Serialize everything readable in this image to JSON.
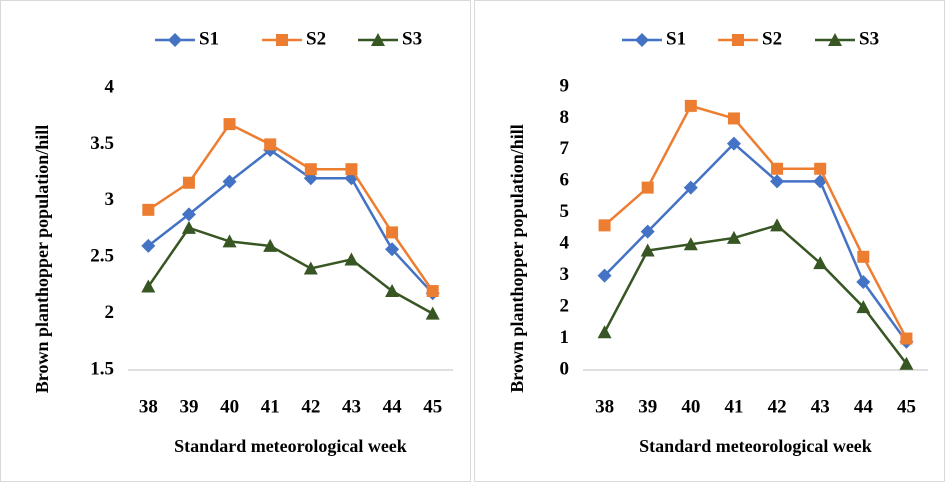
{
  "chart_data": [
    {
      "type": "line",
      "categories": [
        "38",
        "39",
        "40",
        "41",
        "42",
        "43",
        "44",
        "45"
      ],
      "x_label": "Standard meteorological week",
      "y_label": "Brown planthopper population/hill",
      "ylim": [
        1.5,
        4
      ],
      "yticks": [
        1.5,
        2,
        2.5,
        3,
        3.5,
        4
      ],
      "series": [
        {
          "name": "S1",
          "color": "#4472c4",
          "marker": "diamond",
          "values": [
            2.6,
            2.88,
            3.17,
            3.45,
            3.2,
            3.2,
            2.57,
            2.18
          ]
        },
        {
          "name": "S2",
          "color": "#ed7d31",
          "marker": "square",
          "values": [
            2.92,
            3.16,
            3.68,
            3.5,
            3.28,
            3.28,
            2.72,
            2.2
          ]
        },
        {
          "name": "S3",
          "color": "#375623",
          "marker": "triangle",
          "values": [
            2.24,
            2.76,
            2.64,
            2.6,
            2.4,
            2.48,
            2.2,
            2.0
          ]
        }
      ]
    },
    {
      "type": "line",
      "categories": [
        "38",
        "39",
        "40",
        "41",
        "42",
        "43",
        "44",
        "45"
      ],
      "x_label": "Standard meteorological week",
      "y_label": "Brown planthopper population/hill",
      "ylim": [
        0,
        9
      ],
      "yticks": [
        0,
        1,
        2,
        3,
        4,
        5,
        6,
        7,
        8,
        9
      ],
      "series": [
        {
          "name": "S1",
          "color": "#4472c4",
          "marker": "diamond",
          "values": [
            3.0,
            4.4,
            5.8,
            7.2,
            6.0,
            6.0,
            2.8,
            0.9
          ]
        },
        {
          "name": "S2",
          "color": "#ed7d31",
          "marker": "square",
          "values": [
            4.6,
            5.8,
            8.4,
            8.0,
            6.4,
            6.4,
            3.6,
            1.0
          ]
        },
        {
          "name": "S3",
          "color": "#375623",
          "marker": "triangle",
          "values": [
            1.2,
            3.8,
            4.0,
            4.2,
            4.6,
            3.4,
            2.0,
            0.2
          ]
        }
      ]
    }
  ]
}
